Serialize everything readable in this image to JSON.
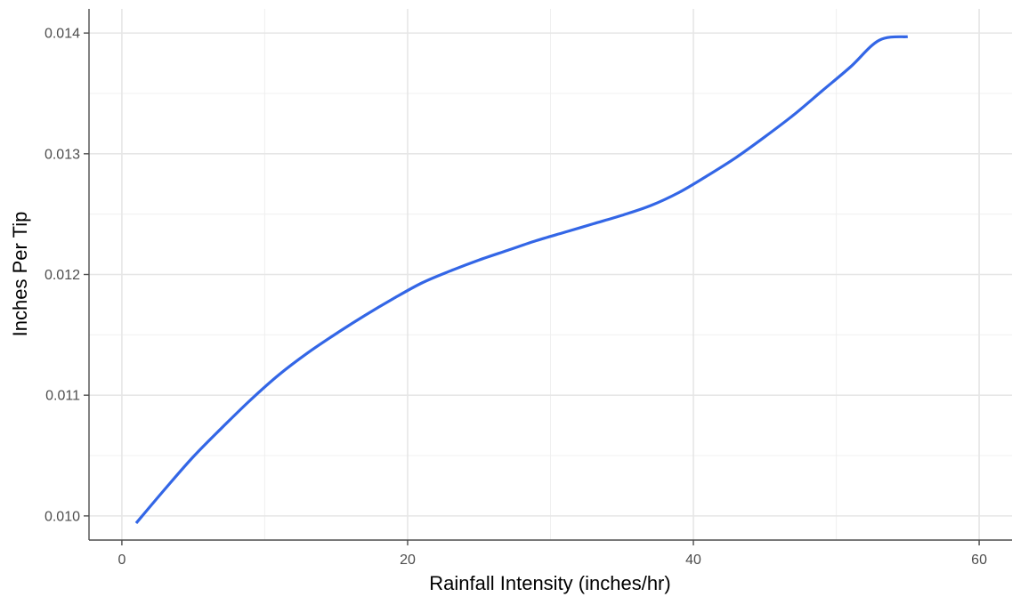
{
  "chart_data": {
    "type": "line",
    "title": "",
    "xlabel": "Rainfall Intensity (inches/hr)",
    "ylabel": "Inches Per Tip",
    "xlim": [
      -2.3,
      62.3
    ],
    "ylim": [
      0.0098,
      0.0142
    ],
    "x_ticks": [
      0,
      20,
      40,
      60
    ],
    "x_tick_labels": [
      "0",
      "20",
      "40",
      "60"
    ],
    "y_ticks": [
      0.01,
      0.011,
      0.012,
      0.013,
      0.014
    ],
    "y_tick_labels": [
      "0.010",
      "0.011",
      "0.012",
      "0.013",
      "0.014"
    ],
    "grid": true,
    "line_color": "#3366E6",
    "series": [
      {
        "x": [
          1,
          3,
          5,
          7,
          9,
          11,
          13,
          15,
          17,
          19,
          21,
          23,
          25,
          27,
          29,
          31,
          33,
          35,
          37,
          39,
          41,
          43,
          45,
          47,
          49,
          51,
          53,
          55
        ],
        "y": [
          0.00994,
          0.01022,
          0.01049,
          0.01073,
          0.01096,
          0.01117,
          0.01135,
          0.01151,
          0.01166,
          0.0118,
          0.01193,
          0.01203,
          0.01212,
          0.0122,
          0.01228,
          0.01235,
          0.01242,
          0.01249,
          0.01257,
          0.01268,
          0.01282,
          0.01297,
          0.01314,
          0.01332,
          0.01352,
          0.01372,
          0.01394,
          0.01397
        ]
      }
    ]
  }
}
